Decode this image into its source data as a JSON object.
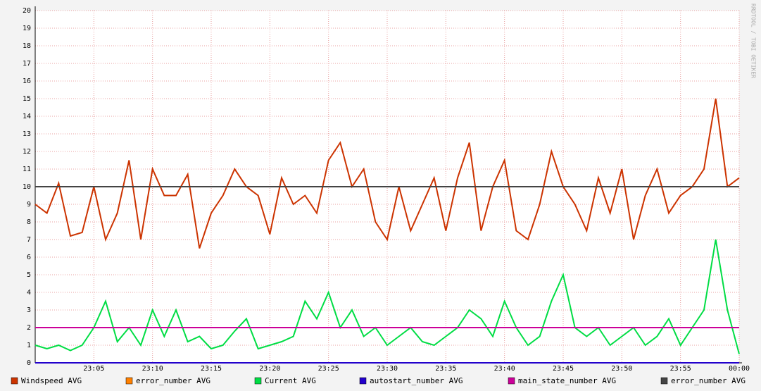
{
  "chart_data": {
    "type": "line",
    "watermark": "RRDTOOL / TOBI OETIKER",
    "xlim": [
      0,
      60
    ],
    "xticks": [
      {
        "value": 5,
        "label": "23:05"
      },
      {
        "value": 10,
        "label": "23:10"
      },
      {
        "value": 15,
        "label": "23:15"
      },
      {
        "value": 20,
        "label": "23:20"
      },
      {
        "value": 25,
        "label": "23:25"
      },
      {
        "value": 30,
        "label": "23:30"
      },
      {
        "value": 35,
        "label": "23:35"
      },
      {
        "value": 40,
        "label": "23:40"
      },
      {
        "value": 45,
        "label": "23:45"
      },
      {
        "value": 50,
        "label": "23:50"
      },
      {
        "value": 55,
        "label": "23:55"
      },
      {
        "value": 60,
        "label": "00:00"
      }
    ],
    "ylim": [
      0,
      20
    ],
    "yticks": [
      0,
      1,
      2,
      3,
      4,
      5,
      6,
      7,
      8,
      9,
      10,
      11,
      12,
      13,
      14,
      15,
      16,
      17,
      18,
      19,
      20
    ],
    "grid": true,
    "x": [
      0,
      1,
      2,
      3,
      4,
      5,
      6,
      7,
      8,
      9,
      10,
      11,
      12,
      13,
      14,
      15,
      16,
      17,
      18,
      19,
      20,
      21,
      22,
      23,
      24,
      25,
      26,
      27,
      28,
      29,
      30,
      31,
      32,
      33,
      34,
      35,
      36,
      37,
      38,
      39,
      40,
      41,
      42,
      43,
      44,
      45,
      46,
      47,
      48,
      49,
      50,
      51,
      52,
      53,
      54,
      55,
      56,
      57,
      58,
      59,
      60
    ],
    "series": [
      {
        "name": "error_number AVG",
        "color": "#ff8000",
        "values": [
          0,
          0,
          0,
          0,
          0,
          0,
          0,
          0,
          0,
          0,
          0,
          0,
          0,
          0,
          0,
          0,
          0,
          0,
          0,
          0,
          0,
          0,
          0,
          0,
          0,
          0,
          0,
          0,
          0,
          0,
          0,
          0,
          0,
          0,
          0,
          0,
          0,
          0,
          0,
          0,
          0,
          0,
          0,
          0,
          0,
          0,
          0,
          0,
          0,
          0,
          0,
          0,
          0,
          0,
          0,
          0,
          0,
          0,
          0,
          0,
          0
        ]
      },
      {
        "name": "autostart_number AVG",
        "color": "#2200cc",
        "values": [
          0,
          0,
          0,
          0,
          0,
          0,
          0,
          0,
          0,
          0,
          0,
          0,
          0,
          0,
          0,
          0,
          0,
          0,
          0,
          0,
          0,
          0,
          0,
          0,
          0,
          0,
          0,
          0,
          0,
          0,
          0,
          0,
          0,
          0,
          0,
          0,
          0,
          0,
          0,
          0,
          0,
          0,
          0,
          0,
          0,
          0,
          0,
          0,
          0,
          0,
          0,
          0,
          0,
          0,
          0,
          0,
          0,
          0,
          0,
          0,
          0
        ]
      },
      {
        "name": "Current AVG",
        "color": "#00dd44",
        "values": [
          1.0,
          0.8,
          1.0,
          0.7,
          1.0,
          2.0,
          3.5,
          1.2,
          2.0,
          1.0,
          3.0,
          1.5,
          3.0,
          1.2,
          1.5,
          0.8,
          1.0,
          1.8,
          2.5,
          0.8,
          1.0,
          1.2,
          1.5,
          3.5,
          2.5,
          4.0,
          2.0,
          3.0,
          1.5,
          2.0,
          1.0,
          1.5,
          2.0,
          1.2,
          1.0,
          1.5,
          2.0,
          3.0,
          2.5,
          1.5,
          3.5,
          2.0,
          1.0,
          1.5,
          3.5,
          5.0,
          2.0,
          1.5,
          2.0,
          1.0,
          1.5,
          2.0,
          1.0,
          1.5,
          2.5,
          1.0,
          2.0,
          3.0,
          7.0,
          3.0,
          0.5
        ]
      },
      {
        "name": "Windspeed AVG",
        "color": "#cc3300",
        "values": [
          9.0,
          8.5,
          10.2,
          7.2,
          7.4,
          10.0,
          7.0,
          8.5,
          11.5,
          7.0,
          11.0,
          9.5,
          9.5,
          10.7,
          6.5,
          8.5,
          9.5,
          11.0,
          10.0,
          9.5,
          7.3,
          10.5,
          9.0,
          9.5,
          8.5,
          11.5,
          12.5,
          10.0,
          11.0,
          8.0,
          7.0,
          10.0,
          7.5,
          9.0,
          10.5,
          7.5,
          10.5,
          12.5,
          7.5,
          10.0,
          11.5,
          7.5,
          7.0,
          9.0,
          12.0,
          10.0,
          9.0,
          7.5,
          10.5,
          8.5,
          11.0,
          7.0,
          9.5,
          11.0,
          8.5,
          9.5,
          10.0,
          11.0,
          15.0,
          10.0,
          10.5
        ]
      },
      {
        "name": "main_state_number AVG",
        "color": "#cc0099",
        "values": [
          2,
          2,
          2,
          2,
          2,
          2,
          2,
          2,
          2,
          2,
          2,
          2,
          2,
          2,
          2,
          2,
          2,
          2,
          2,
          2,
          2,
          2,
          2,
          2,
          2,
          2,
          2,
          2,
          2,
          2,
          2,
          2,
          2,
          2,
          2,
          2,
          2,
          2,
          2,
          2,
          2,
          2,
          2,
          2,
          2,
          2,
          2,
          2,
          2,
          2,
          2,
          2,
          2,
          2,
          2,
          2,
          2,
          2,
          2,
          2,
          2
        ]
      },
      {
        "name": "error_number AVG",
        "color": "#444444",
        "values": [
          10,
          10,
          10,
          10,
          10,
          10,
          10,
          10,
          10,
          10,
          10,
          10,
          10,
          10,
          10,
          10,
          10,
          10,
          10,
          10,
          10,
          10,
          10,
          10,
          10,
          10,
          10,
          10,
          10,
          10,
          10,
          10,
          10,
          10,
          10,
          10,
          10,
          10,
          10,
          10,
          10,
          10,
          10,
          10,
          10,
          10,
          10,
          10,
          10,
          10,
          10,
          10,
          10,
          10,
          10,
          10,
          10,
          10,
          10,
          10,
          10
        ]
      }
    ],
    "legend_order": [
      3,
      0,
      2,
      1,
      4,
      5
    ]
  }
}
